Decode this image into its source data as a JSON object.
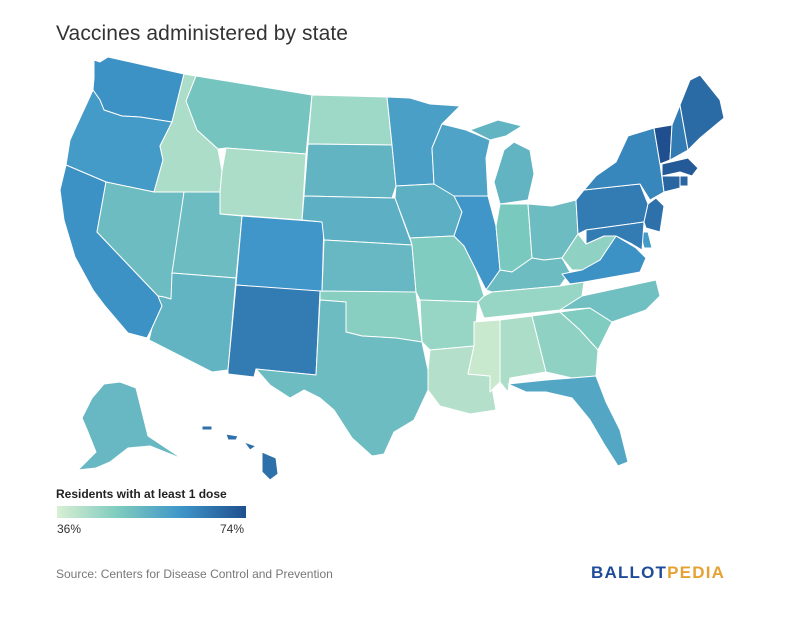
{
  "title": "Vaccines administered by state",
  "legend": {
    "title": "Residents with at least 1 dose",
    "min_label": "36%",
    "max_label": "74%",
    "min": 36,
    "max": 74,
    "gradient": [
      "#d8efd2",
      "#7ccabf",
      "#3e95c8",
      "#1f4f8f"
    ]
  },
  "source": "Source: Centers for Disease Control and Prevention",
  "brand": {
    "part1": "BALLOT",
    "part2": "PEDIA",
    "color1": "#1e4b9a",
    "color2": "#e5a233"
  },
  "states": [
    {
      "name": "Washington",
      "value": 62
    },
    {
      "name": "Oregon",
      "value": 60
    },
    {
      "name": "California",
      "value": 62
    },
    {
      "name": "Idaho",
      "value": 42
    },
    {
      "name": "Nevada",
      "value": 52
    },
    {
      "name": "Montana",
      "value": 50
    },
    {
      "name": "Wyoming",
      "value": 42
    },
    {
      "name": "Utah",
      "value": 52
    },
    {
      "name": "Arizona",
      "value": 54
    },
    {
      "name": "Colorado",
      "value": 61
    },
    {
      "name": "New Mexico",
      "value": 66
    },
    {
      "name": "North Dakota",
      "value": 44
    },
    {
      "name": "South Dakota",
      "value": 54
    },
    {
      "name": "Nebraska",
      "value": 55
    },
    {
      "name": "Kansas",
      "value": 53
    },
    {
      "name": "Oklahoma",
      "value": 47
    },
    {
      "name": "Texas",
      "value": 52
    },
    {
      "name": "Minnesota",
      "value": 59
    },
    {
      "name": "Iowa",
      "value": 55
    },
    {
      "name": "Missouri",
      "value": 48
    },
    {
      "name": "Arkansas",
      "value": 45
    },
    {
      "name": "Louisiana",
      "value": 41
    },
    {
      "name": "Wisconsin",
      "value": 58
    },
    {
      "name": "Illinois",
      "value": 61
    },
    {
      "name": "Michigan",
      "value": 54
    },
    {
      "name": "Indiana",
      "value": 49
    },
    {
      "name": "Ohio",
      "value": 52
    },
    {
      "name": "Kentucky",
      "value": 52
    },
    {
      "name": "Tennessee",
      "value": 45
    },
    {
      "name": "Mississippi",
      "value": 38
    },
    {
      "name": "Alabama",
      "value": 42
    },
    {
      "name": "Georgia",
      "value": 46
    },
    {
      "name": "Florida",
      "value": 57
    },
    {
      "name": "South Carolina",
      "value": 48
    },
    {
      "name": "North Carolina",
      "value": 51
    },
    {
      "name": "Virginia",
      "value": 62
    },
    {
      "name": "West Virginia",
      "value": 46
    },
    {
      "name": "Pennsylvania",
      "value": 66
    },
    {
      "name": "New York",
      "value": 64
    },
    {
      "name": "Vermont",
      "value": 74
    },
    {
      "name": "New Hampshire",
      "value": 66
    },
    {
      "name": "Maine",
      "value": 69
    },
    {
      "name": "Massachusetts",
      "value": 72
    },
    {
      "name": "Rhode Island",
      "value": 70
    },
    {
      "name": "Connecticut",
      "value": 70
    },
    {
      "name": "New Jersey",
      "value": 68
    },
    {
      "name": "Delaware",
      "value": 60
    },
    {
      "name": "Maryland",
      "value": 66
    },
    {
      "name": "Alaska",
      "value": 53
    },
    {
      "name": "Hawaii",
      "value": 68
    }
  ]
}
